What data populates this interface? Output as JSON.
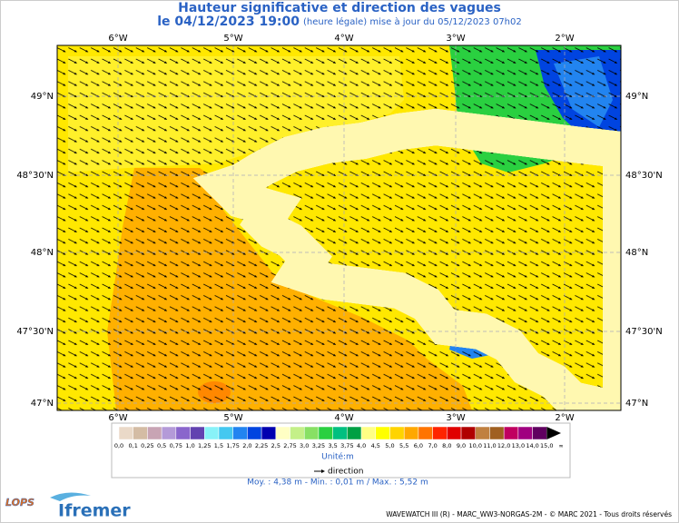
{
  "header": {
    "title": "Hauteur significative et direction des vagues",
    "date": "le 04/12/2023 19:00",
    "update": "(heure légale) mise à jour du 05/12/2023 07h02"
  },
  "map": {
    "lon_labels": [
      "6°W",
      "5°W",
      "4°W",
      "3°W",
      "2°W"
    ],
    "lat_labels": [
      "49°N",
      "48°30'N",
      "48°N",
      "47°30'N",
      "47°N"
    ]
  },
  "legend": {
    "colorbar": {
      "labels": [
        "0,0",
        "0,1",
        "0,25",
        "0,5",
        "0,75",
        "1,0",
        "1,25",
        "1,5",
        "1,75",
        "2,0",
        "2,25",
        "2,5",
        "2,75",
        "3,0",
        "3,25",
        "3,5",
        "3,75",
        "4,0",
        "4,5",
        "5,0",
        "5,5",
        "6,0",
        "7,0",
        "8,0",
        "9,0",
        "10,0",
        "11,0",
        "12,0",
        "13,0",
        "14,0",
        "15,0",
        "∞"
      ],
      "colors": [
        "#ead9c8",
        "#d4bca4",
        "#c8a4b4",
        "#b49ad8",
        "#8a66cc",
        "#6242b0",
        "#88f2f8",
        "#44c8f0",
        "#2284f0",
        "#0044e0",
        "#0000b0",
        "#ffffc4",
        "#c4f088",
        "#88e064",
        "#2ad040",
        "#00c080",
        "#00a044",
        "#ffff84",
        "#ffff00",
        "#ffd400",
        "#ffa800",
        "#ff7400",
        "#ff2400",
        "#e00000",
        "#b00000",
        "#c08040",
        "#a06020",
        "#c00060",
        "#a00080",
        "#600060",
        "#000000"
      ]
    },
    "unit": "Unité:m",
    "direction": "direction"
  },
  "stats": "Moy. : 4,38 m  -  Min. : 0,01 m / Max. : 5,52 m",
  "footer": {
    "credits": "WAVEWATCH III (R) - MARC_WW3-NORGAS-2M - © MARC 2021 - Tous droits réservés",
    "logos": [
      "LOPS",
      "Ifremer"
    ]
  }
}
